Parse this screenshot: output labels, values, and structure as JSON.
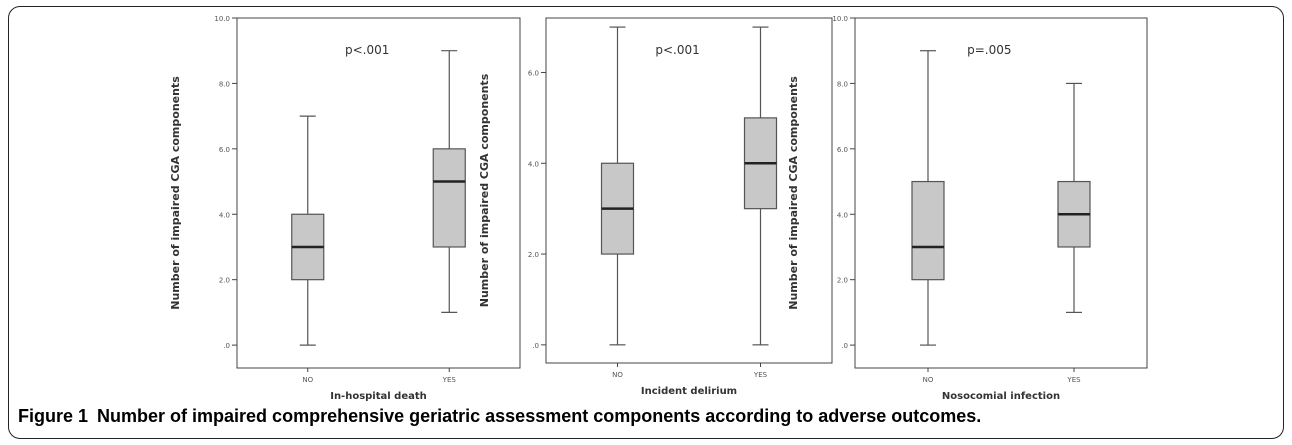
{
  "figure": {
    "caption_label": "Figure 1",
    "caption_text": "Number of impaired comprehensive geriatric assessment components according to adverse outcomes."
  },
  "chart_data": [
    {
      "type": "boxplot",
      "annotation": "p<.001",
      "xlabel": "In-hospital death",
      "ylabel": "Number of impaired CGA components",
      "categories": [
        "NO",
        "YES"
      ],
      "ylim": [
        -0.7,
        10.0
      ],
      "yticks": [
        0,
        2,
        4,
        6,
        8,
        10
      ],
      "ytick_labels": [
        ".0",
        "2.0",
        "4.0",
        "6.0",
        "8.0",
        "10.0"
      ],
      "boxes": [
        {
          "category": "NO",
          "min": 0,
          "q1": 2,
          "median": 3,
          "q3": 4,
          "max": 7
        },
        {
          "category": "YES",
          "min": 1,
          "q1": 3,
          "median": 5,
          "q3": 6,
          "max": 9
        }
      ],
      "box_color": "#c8c8c8",
      "grid": false
    },
    {
      "type": "boxplot",
      "annotation": "p<.001",
      "xlabel": "Incident delirium",
      "ylabel": "Number of impaired CGA components",
      "categories": [
        "NO",
        "YES"
      ],
      "ylim": [
        -0.4,
        7.2
      ],
      "yticks": [
        0,
        2,
        4,
        6
      ],
      "ytick_labels": [
        ".0",
        "2.0",
        "4.0",
        "6.0"
      ],
      "boxes": [
        {
          "category": "NO",
          "min": 0,
          "q1": 2,
          "median": 3,
          "q3": 4,
          "max": 7
        },
        {
          "category": "YES",
          "min": 0,
          "q1": 3,
          "median": 4,
          "q3": 5,
          "max": 7
        }
      ],
      "box_color": "#c8c8c8",
      "grid": false
    },
    {
      "type": "boxplot",
      "annotation": "p=.005",
      "xlabel": "Nosocomial infection",
      "ylabel": "Number of impaired CGA components",
      "categories": [
        "NO",
        "YES"
      ],
      "ylim": [
        -0.7,
        10.0
      ],
      "yticks": [
        0,
        2,
        4,
        6,
        8,
        10
      ],
      "ytick_labels": [
        ".0",
        "2.0",
        "4.0",
        "6.0",
        "8.0",
        "10.0"
      ],
      "boxes": [
        {
          "category": "NO",
          "min": 0,
          "q1": 2,
          "median": 3,
          "q3": 5,
          "max": 9
        },
        {
          "category": "YES",
          "min": 1,
          "q1": 3,
          "median": 4,
          "q3": 5,
          "max": 8
        }
      ],
      "box_color": "#c8c8c8",
      "grid": false
    }
  ]
}
